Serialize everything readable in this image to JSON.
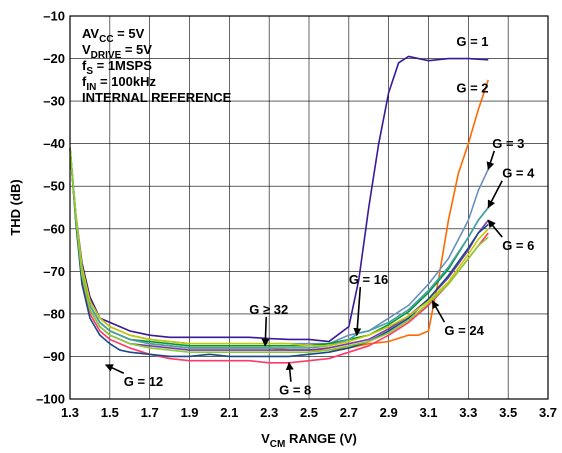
{
  "chart_data": {
    "type": "line",
    "title": "",
    "xlabel": {
      "main": "V",
      "sub": "CM",
      "rest": " RANGE (V)"
    },
    "ylabel": "THD (dB)",
    "xlim": [
      1.3,
      3.7
    ],
    "ylim": [
      -100,
      -10
    ],
    "xticks": [
      "1.3",
      "1.5",
      "1.7",
      "1.9",
      "2.1",
      "2.3",
      "2.5",
      "2.7",
      "2.9",
      "3.1",
      "3.3",
      "3.5",
      "3.7"
    ],
    "yticks": [
      "–10",
      "–20",
      "–30",
      "–40",
      "–50",
      "–60",
      "–70",
      "–80",
      "–90",
      "–100"
    ],
    "grid": true,
    "conditions": [
      {
        "main": "AV",
        "sub": "CC",
        "rest": " = 5V"
      },
      {
        "main": "V",
        "sub": "DRIVE",
        "rest": " = 5V"
      },
      {
        "main": "f",
        "sub": "S",
        "rest": " = 1MSPS"
      },
      {
        "main": "f",
        "sub": "IN",
        "rest": " = 100kHz"
      },
      {
        "main": "INTERNAL REFERENCE",
        "sub": "",
        "rest": ""
      }
    ],
    "series": [
      {
        "name": "G = 1",
        "color": "#3a1a9a",
        "x": [
          1.3,
          1.33,
          1.36,
          1.4,
          1.45,
          1.5,
          1.6,
          1.7,
          1.8,
          1.9,
          2.0,
          2.1,
          2.2,
          2.3,
          2.4,
          2.5,
          2.6,
          2.7,
          2.75,
          2.8,
          2.85,
          2.9,
          2.95,
          3.0,
          3.05,
          3.1,
          3.2,
          3.3,
          3.4
        ],
        "y": [
          -41,
          -57,
          -68,
          -76,
          -81,
          -82,
          -84,
          -85,
          -85.5,
          -85.5,
          -85.5,
          -85.5,
          -85.5,
          -85.8,
          -86,
          -86,
          -86.5,
          -83,
          -72,
          -55,
          -40,
          -28,
          -21,
          -19.5,
          -20,
          -20.5,
          -20,
          -20,
          -20.3
        ]
      },
      {
        "name": "G = 2",
        "color": "#ff6a00",
        "x": [
          1.3,
          1.33,
          1.36,
          1.4,
          1.45,
          1.5,
          1.6,
          1.7,
          1.8,
          1.9,
          2.0,
          2.1,
          2.2,
          2.3,
          2.4,
          2.5,
          2.6,
          2.7,
          2.8,
          2.9,
          3.0,
          3.05,
          3.1,
          3.15,
          3.2,
          3.25,
          3.3,
          3.35,
          3.4
        ],
        "y": [
          -41,
          -58,
          -70,
          -78,
          -82,
          -84,
          -86,
          -87,
          -87.5,
          -88,
          -88,
          -88,
          -88,
          -88,
          -88.5,
          -88.5,
          -88.5,
          -88,
          -87,
          -86.5,
          -85,
          -85,
          -84,
          -72,
          -58,
          -47,
          -40,
          -32,
          -25
        ]
      },
      {
        "name": "G = 3",
        "color": "#6a8fbe",
        "x": [
          1.3,
          1.33,
          1.36,
          1.4,
          1.45,
          1.5,
          1.6,
          1.7,
          1.8,
          1.9,
          2.0,
          2.1,
          2.2,
          2.3,
          2.4,
          2.5,
          2.6,
          2.7,
          2.8,
          2.9,
          3.0,
          3.1,
          3.2,
          3.3,
          3.35,
          3.4
        ],
        "y": [
          -41,
          -57,
          -69,
          -77,
          -81,
          -83,
          -85,
          -86,
          -86.5,
          -87,
          -87,
          -87,
          -87,
          -87,
          -87,
          -87,
          -87,
          -85,
          -84,
          -81,
          -78,
          -73,
          -67,
          -58,
          -51,
          -46
        ]
      },
      {
        "name": "G = 4",
        "color": "#009a3a",
        "x": [
          1.3,
          1.33,
          1.36,
          1.4,
          1.45,
          1.5,
          1.6,
          1.7,
          1.8,
          1.9,
          2.0,
          2.1,
          2.2,
          2.3,
          2.4,
          2.5,
          2.6,
          2.7,
          2.8,
          2.9,
          3.0,
          3.1,
          3.2,
          3.3,
          3.35,
          3.4
        ],
        "y": [
          -41,
          -58,
          -70,
          -78,
          -82,
          -84,
          -86,
          -86.5,
          -87,
          -87.5,
          -87.5,
          -87.5,
          -87.5,
          -87.5,
          -87.5,
          -87.5,
          -87,
          -86,
          -85,
          -82.5,
          -79.5,
          -75,
          -69.5,
          -62,
          -58,
          -55
        ]
      },
      {
        "name": "G = 6",
        "color": "#7a3aaa",
        "x": [
          1.3,
          1.33,
          1.36,
          1.4,
          1.45,
          1.5,
          1.6,
          1.7,
          1.8,
          1.9,
          2.0,
          2.1,
          2.2,
          2.3,
          2.4,
          2.5,
          2.6,
          2.7,
          2.8,
          2.9,
          3.0,
          3.1,
          3.2,
          3.3,
          3.35,
          3.4
        ],
        "y": [
          -41,
          -58,
          -71,
          -79,
          -83,
          -85,
          -87,
          -87.5,
          -88,
          -88.5,
          -88.5,
          -88.5,
          -88.5,
          -88.5,
          -88.5,
          -88.5,
          -88,
          -87,
          -86,
          -83.5,
          -80.5,
          -76.5,
          -71.5,
          -65,
          -61,
          -58
        ]
      },
      {
        "name": "G = 8",
        "color": "#ff3a6a",
        "x": [
          1.3,
          1.33,
          1.36,
          1.4,
          1.45,
          1.5,
          1.6,
          1.7,
          1.8,
          1.9,
          2.0,
          2.1,
          2.2,
          2.3,
          2.4,
          2.5,
          2.6,
          2.7,
          2.8,
          2.9,
          3.0,
          3.1,
          3.2,
          3.3,
          3.35,
          3.4
        ],
        "y": [
          -41,
          -58,
          -72,
          -80,
          -84,
          -86,
          -88,
          -89.5,
          -90.5,
          -91,
          -91,
          -91,
          -91,
          -91.5,
          -91.5,
          -91,
          -90.5,
          -89,
          -87.5,
          -85,
          -82,
          -78,
          -73,
          -67,
          -64,
          -61
        ]
      },
      {
        "name": "G = 12",
        "color": "#1a4a8a",
        "x": [
          1.3,
          1.33,
          1.36,
          1.4,
          1.45,
          1.5,
          1.55,
          1.6,
          1.7,
          1.8,
          1.9,
          2.0,
          2.1,
          2.2,
          2.3,
          2.4,
          2.5,
          2.6,
          2.7,
          2.8,
          2.9,
          3.0,
          3.1,
          3.2,
          3.3,
          3.35,
          3.4
        ],
        "y": [
          -41,
          -59,
          -73,
          -81,
          -85,
          -87,
          -88.5,
          -89,
          -89.5,
          -90,
          -90,
          -89.5,
          -90,
          -90,
          -90,
          -90,
          -89.5,
          -89,
          -88,
          -86.5,
          -84,
          -81,
          -76.5,
          -71,
          -64.5,
          -61,
          -59
        ]
      },
      {
        "name": "G = 16",
        "color": "#4aa0a8",
        "x": [
          1.3,
          1.33,
          1.36,
          1.4,
          1.45,
          1.5,
          1.6,
          1.7,
          1.8,
          1.9,
          2.0,
          2.1,
          2.2,
          2.3,
          2.4,
          2.5,
          2.6,
          2.7,
          2.75,
          2.8,
          2.9,
          3.0,
          3.1,
          3.2,
          3.3,
          3.35,
          3.4
        ],
        "y": [
          -41,
          -57,
          -70,
          -78,
          -82,
          -84,
          -86,
          -87,
          -87.5,
          -88,
          -88,
          -88,
          -88,
          -88,
          -88,
          -88,
          -87.5,
          -86,
          -84.5,
          -84,
          -82,
          -79,
          -74.5,
          -69,
          -62,
          -58,
          -55
        ]
      },
      {
        "name": "G ≥ 32",
        "color": "#c8c800",
        "x": [
          1.3,
          1.33,
          1.36,
          1.4,
          1.45,
          1.5,
          1.6,
          1.7,
          1.8,
          1.9,
          2.0,
          2.1,
          2.2,
          2.3,
          2.4,
          2.5,
          2.6,
          2.7,
          2.8,
          2.9,
          3.0,
          3.1,
          3.2,
          3.3,
          3.35,
          3.4
        ],
        "y": [
          -41,
          -57,
          -69,
          -77,
          -81,
          -83,
          -85,
          -86,
          -86.5,
          -87,
          -87,
          -87,
          -87,
          -87,
          -87,
          -87.5,
          -87.5,
          -86.5,
          -85,
          -83,
          -80.5,
          -77,
          -72.5,
          -66,
          -62.5,
          -60
        ]
      },
      {
        "name": "G = 24",
        "color": "#88cc33",
        "x": [
          1.3,
          1.33,
          1.36,
          1.4,
          1.45,
          1.5,
          1.6,
          1.7,
          1.8,
          1.9,
          2.0,
          2.1,
          2.2,
          2.3,
          2.4,
          2.5,
          2.6,
          2.7,
          2.8,
          2.9,
          3.0,
          3.1,
          3.2,
          3.3,
          3.35,
          3.4
        ],
        "y": [
          -41,
          -58,
          -71,
          -79,
          -83,
          -85,
          -87,
          -88,
          -88.5,
          -89,
          -89,
          -89,
          -89,
          -89,
          -89,
          -89,
          -88.5,
          -87.5,
          -86.5,
          -84.5,
          -81.5,
          -77.5,
          -73,
          -67,
          -64,
          -62
        ]
      }
    ],
    "annotations": [
      {
        "text": "G = 1",
        "x": 3.24,
        "y": -17,
        "arrow": null
      },
      {
        "text": "G = 2",
        "x": 3.24,
        "y": -28,
        "arrow": null
      },
      {
        "text": "G = 3",
        "x": 3.42,
        "y": -41,
        "arrow": [
          3.4,
          -46
        ]
      },
      {
        "text": "G = 4",
        "x": 3.47,
        "y": -48,
        "arrow": [
          3.4,
          -55
        ]
      },
      {
        "text": "G = 6",
        "x": 3.47,
        "y": -65,
        "arrow": [
          3.4,
          -58
        ]
      },
      {
        "text": "G = 24",
        "x": 3.18,
        "y": -85,
        "arrow": [
          3.12,
          -77
        ]
      },
      {
        "text": "G = 16",
        "x": 2.7,
        "y": -73,
        "arrow": [
          2.74,
          -85
        ]
      },
      {
        "text": "G ≥ 32",
        "x": 2.2,
        "y": -80,
        "arrow": [
          2.28,
          -87.5
        ]
      },
      {
        "text": "G = 12",
        "x": 1.57,
        "y": -97,
        "arrow": [
          1.48,
          -92
        ]
      },
      {
        "text": "G = 8",
        "x": 2.35,
        "y": -99,
        "arrow": [
          2.4,
          -91.5
        ]
      }
    ]
  }
}
